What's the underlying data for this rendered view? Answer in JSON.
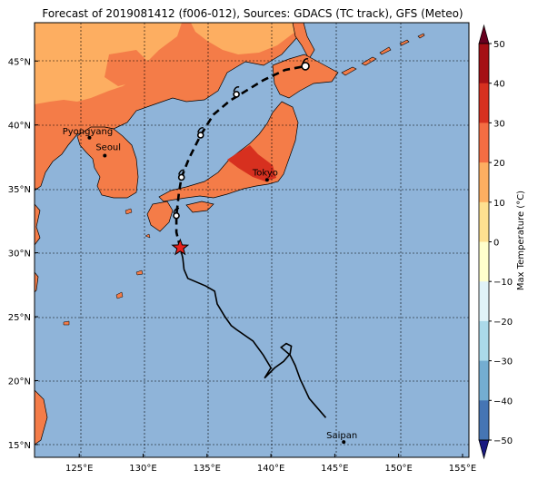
{
  "title": "Forecast of 2019081412 (f006-012), Sources: GDACS (TC track), GFS (Meteo)",
  "map": {
    "lon_ticks": [
      "125°E",
      "130°E",
      "135°E",
      "140°E",
      "145°E",
      "150°E",
      "155°E"
    ],
    "lat_ticks": [
      "45°N",
      "40°N",
      "35°N",
      "30°N",
      "25°N",
      "20°N",
      "15°N"
    ],
    "cities": [
      {
        "name": "Pyongyang",
        "lon": 125.8,
        "lat": 39.0
      },
      {
        "name": "Seoul",
        "lon": 127.0,
        "lat": 37.6
      },
      {
        "name": "Tokyo",
        "lon": 139.7,
        "lat": 35.7
      },
      {
        "name": "Saipan",
        "lon": 145.7,
        "lat": 15.2
      }
    ]
  },
  "colorbar": {
    "label": "Max Temperature (°C)",
    "ticks": [
      "50",
      "40",
      "30",
      "20",
      "10",
      "0",
      "−10",
      "−20",
      "−30",
      "−40",
      "−50"
    ],
    "colors": [
      "#67001f",
      "#a50f15",
      "#d7301f",
      "#f46d43",
      "#fdae61",
      "#fee090",
      "#ffffcc",
      "#e0f3f8",
      "#abd9e9",
      "#74add1",
      "#4575b4",
      "#313695",
      "#1a1a80"
    ]
  },
  "track": {
    "past": [
      [
        144.3,
        17.1
      ],
      [
        143.0,
        18.6
      ],
      [
        142.3,
        20.1
      ],
      [
        141.9,
        21.2
      ],
      [
        141.5,
        22.0
      ],
      [
        140.8,
        22.6
      ],
      [
        141.2,
        22.9
      ],
      [
        141.4,
        22.8
      ],
      [
        141.6,
        22.7
      ],
      [
        141.5,
        22.1
      ],
      [
        141.0,
        21.5
      ],
      [
        140.3,
        21.0
      ],
      [
        139.5,
        20.2
      ],
      [
        140.0,
        21.0
      ],
      [
        139.4,
        22.0
      ],
      [
        138.6,
        23.1
      ],
      [
        137.3,
        24.0
      ],
      [
        136.9,
        24.3
      ],
      [
        136.4,
        25.0
      ],
      [
        135.8,
        26.0
      ],
      [
        135.6,
        27.0
      ],
      [
        134.9,
        27.4
      ],
      [
        133.5,
        28.0
      ],
      [
        133.2,
        28.7
      ],
      [
        133.1,
        29.6
      ],
      [
        132.9,
        30.4
      ]
    ],
    "forecast": [
      [
        132.9,
        30.4
      ],
      [
        132.6,
        31.6
      ],
      [
        132.6,
        32.9
      ],
      [
        132.8,
        34.7
      ],
      [
        133.0,
        35.9
      ],
      [
        133.6,
        37.4
      ],
      [
        134.5,
        39.2
      ],
      [
        135.5,
        40.8
      ],
      [
        136.8,
        41.9
      ],
      [
        138.1,
        42.7
      ],
      [
        139.4,
        43.5
      ],
      [
        141.1,
        44.3
      ],
      [
        142.7,
        44.6
      ]
    ],
    "positions": [
      [
        132.6,
        32.9
      ],
      [
        133.0,
        35.9
      ],
      [
        134.5,
        39.2
      ],
      [
        137.3,
        42.4
      ],
      [
        142.7,
        44.6
      ]
    ],
    "current": [
      132.9,
      30.4
    ]
  }
}
